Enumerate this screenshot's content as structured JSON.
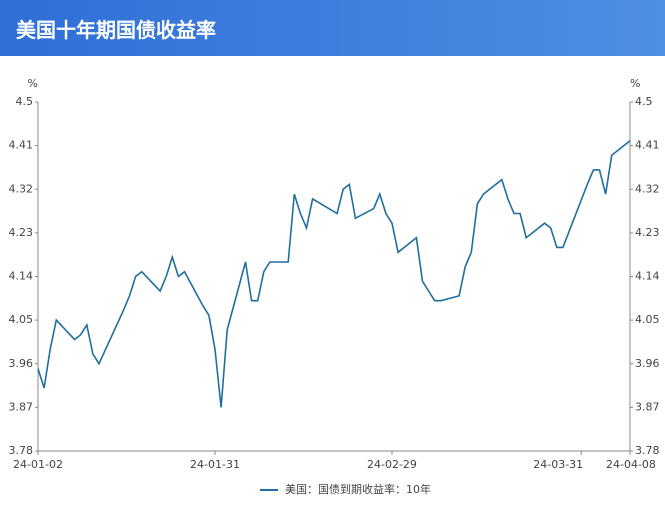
{
  "chart_data": {
    "type": "line",
    "title": "美国十年期国债收益率",
    "y_unit": "%",
    "x": [
      "24-01-02",
      "24-01-03",
      "24-01-04",
      "24-01-05",
      "24-01-08",
      "24-01-09",
      "24-01-10",
      "24-01-11",
      "24-01-12",
      "24-01-16",
      "24-01-17",
      "24-01-18",
      "24-01-19",
      "24-01-22",
      "24-01-23",
      "24-01-24",
      "24-01-25",
      "24-01-26",
      "24-01-29",
      "24-01-30",
      "24-01-31",
      "24-02-01",
      "24-02-02",
      "24-02-05",
      "24-02-06",
      "24-02-07",
      "24-02-08",
      "24-02-09",
      "24-02-12",
      "24-02-13",
      "24-02-14",
      "24-02-15",
      "24-02-16",
      "24-02-20",
      "24-02-21",
      "24-02-22",
      "24-02-23",
      "24-02-26",
      "24-02-27",
      "24-02-28",
      "24-02-29",
      "24-03-01",
      "24-03-04",
      "24-03-05",
      "24-03-06",
      "24-03-07",
      "24-03-08",
      "24-03-11",
      "24-03-12",
      "24-03-13",
      "24-03-14",
      "24-03-15",
      "24-03-18",
      "24-03-19",
      "24-03-20",
      "24-03-21",
      "24-03-22",
      "24-03-25",
      "24-03-26",
      "24-03-27",
      "24-03-28",
      "24-04-01",
      "24-04-02",
      "24-04-03",
      "24-04-04",
      "24-04-05",
      "24-04-08"
    ],
    "series": [
      {
        "name": "美国：国债到期收益率：10年",
        "color": "#1f6f9f",
        "values": [
          3.95,
          3.91,
          3.99,
          4.05,
          4.01,
          4.02,
          4.04,
          3.98,
          3.96,
          4.07,
          4.1,
          4.14,
          4.15,
          4.11,
          4.14,
          4.18,
          4.14,
          4.15,
          4.08,
          4.06,
          3.99,
          3.87,
          4.03,
          4.17,
          4.09,
          4.09,
          4.15,
          4.17,
          4.17,
          4.31,
          4.27,
          4.24,
          4.3,
          4.27,
          4.32,
          4.33,
          4.26,
          4.28,
          4.31,
          4.27,
          4.25,
          4.19,
          4.22,
          4.13,
          4.11,
          4.09,
          4.09,
          4.1,
          4.16,
          4.19,
          4.29,
          4.31,
          4.34,
          4.3,
          4.27,
          4.27,
          4.22,
          4.25,
          4.24,
          4.2,
          4.2,
          4.33,
          4.36,
          4.36,
          4.31,
          4.39,
          4.42
        ]
      }
    ],
    "xlim": [
      "24-01-02",
      "24-04-08"
    ],
    "xticks": [
      "24-01-02",
      "24-01-31",
      "24-02-29",
      "24-03-31",
      "24-04-08"
    ],
    "ylim": [
      3.78,
      4.5
    ],
    "yticks": [
      3.78,
      3.87,
      3.96,
      4.05,
      4.14,
      4.23,
      4.32,
      4.41,
      4.5
    ]
  }
}
